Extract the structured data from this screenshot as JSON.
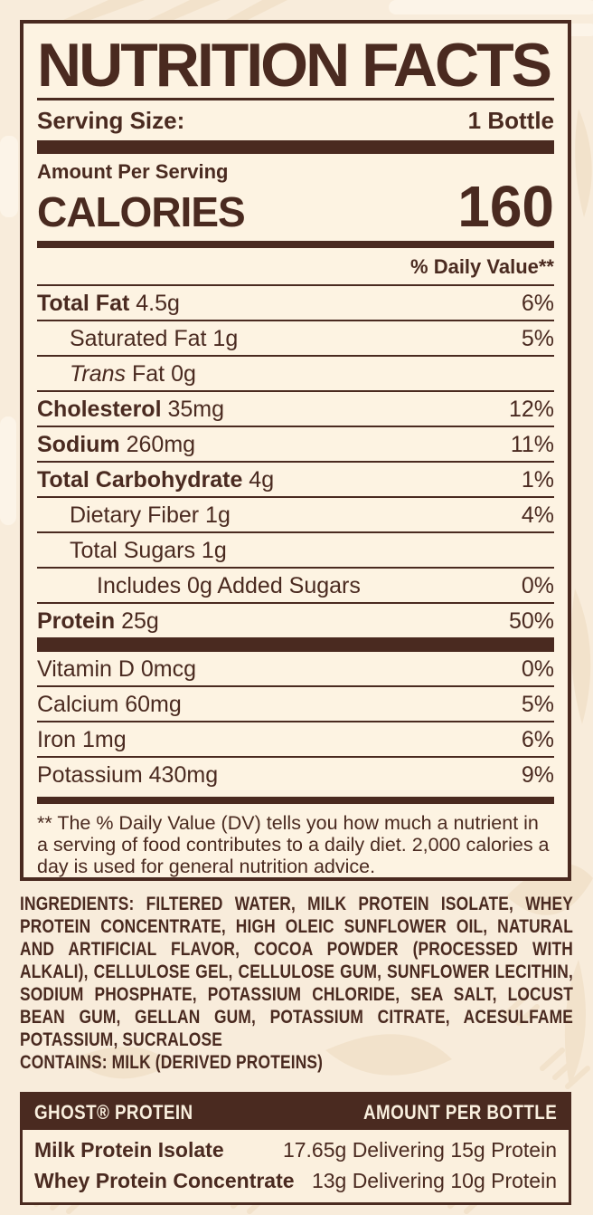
{
  "colors": {
    "brown": "#4a2a20",
    "panel_bg": "#fdf3e2",
    "page_bg": "#f8ecdb",
    "pattern": "#f2e2cb",
    "header_text_cream": "#f9efde"
  },
  "label": {
    "title": "NUTRITION FACTS",
    "serving_size_label": "Serving Size:",
    "serving_size_value": "1 Bottle",
    "amount_per_serving": "Amount Per Serving",
    "calories_label": "CALORIES",
    "calories_value": "160",
    "daily_value_header": "% Daily Value**",
    "rows": [
      {
        "name": "Total Fat",
        "amount": "4.5g",
        "dv": "6%",
        "bold": true,
        "indent": 0
      },
      {
        "name": "Saturated Fat",
        "amount": "1g",
        "dv": "5%",
        "bold": false,
        "indent": 1
      },
      {
        "name": "Trans Fat",
        "amount": "0g",
        "dv": "",
        "bold": false,
        "indent": 1,
        "italic": true
      },
      {
        "name": "Cholesterol",
        "amount": "35mg",
        "dv": "12%",
        "bold": true,
        "indent": 0
      },
      {
        "name": "Sodium",
        "amount": "260mg",
        "dv": "11%",
        "bold": true,
        "indent": 0
      },
      {
        "name": "Total Carbohydrate",
        "amount": "4g",
        "dv": "1%",
        "bold": true,
        "indent": 0
      },
      {
        "name": "Dietary Fiber",
        "amount": "1g",
        "dv": "4%",
        "bold": false,
        "indent": 1
      },
      {
        "name": "Total Sugars",
        "amount": "1g",
        "dv": "",
        "bold": false,
        "indent": 1
      },
      {
        "name": "Includes 0g Added Sugars",
        "amount": "",
        "dv": "0%",
        "bold": false,
        "indent": 2
      },
      {
        "name": "Protein",
        "amount": "25g",
        "dv": "50%",
        "bold": true,
        "indent": 0
      }
    ],
    "vitamin_rows": [
      {
        "name": "Vitamin D",
        "amount": "0mcg",
        "dv": "0%"
      },
      {
        "name": "Calcium",
        "amount": "60mg",
        "dv": "5%"
      },
      {
        "name": "Iron",
        "amount": "1mg",
        "dv": "6%"
      },
      {
        "name": "Potassium",
        "amount": "430mg",
        "dv": "9%"
      }
    ],
    "footnote": "** The % Daily Value (DV) tells you how much a nutrient in a serving of food contributes to a daily diet. 2,000 calories a day is used for general nutrition advice."
  },
  "ingredients": {
    "label": "INGREDIENTS:",
    "text": "FILTERED WATER, MILK PROTEIN ISOLATE, WHEY PROTEIN CONCENTRATE, HIGH OLEIC SUNFLOWER OIL, NATURAL AND ARTIFICIAL FLAVOR, COCOA POWDER (PROCESSED WITH ALKALI), CELLULOSE GEL, CELLULOSE GUM, SUNFLOWER LECITHIN, SODIUM PHOSPHATE, POTASSIUM CHLORIDE, SEA SALT, LOCUST BEAN GUM, GELLAN GUM, POTASSIUM CITRATE, ACESULFAME POTASSIUM, SUCRALOSE",
    "contains": "CONTAINS: MILK (DERIVED PROTEINS)"
  },
  "protein_table": {
    "header_left": "GHOST® PROTEIN",
    "header_right": "AMOUNT PER BOTTLE",
    "rows": [
      {
        "name": "Milk Protein Isolate",
        "amount": "17.65g Delivering 15g Protein"
      },
      {
        "name": "Whey Protein Concentrate",
        "amount": "13g Delivering 10g Protein"
      }
    ]
  }
}
